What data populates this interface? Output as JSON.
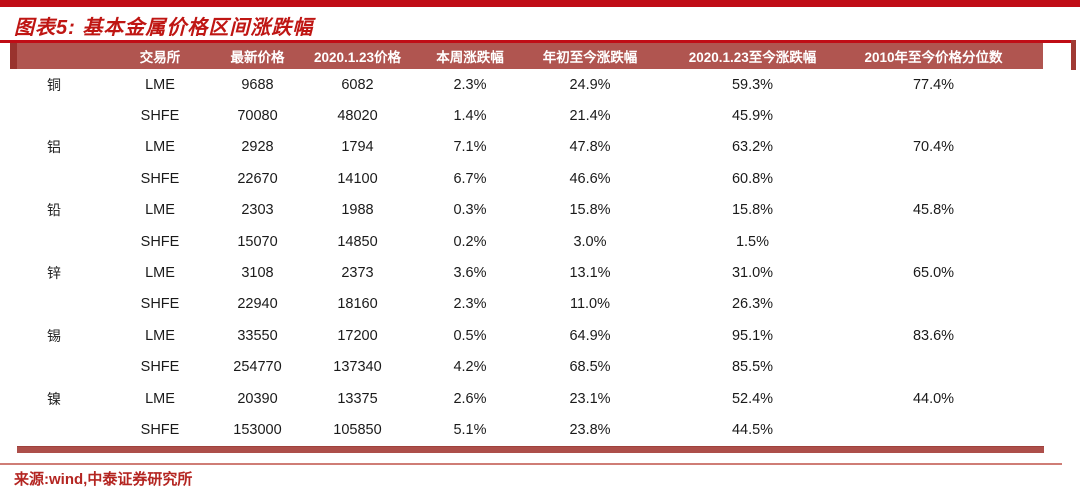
{
  "title": "图表5: 基本金属价格区间涨跌幅",
  "source": "来源:wind,中泰证券研究所",
  "colors": {
    "accent_red": "#c00d16",
    "header_bg": "#b05550",
    "header_text": "#ffffff",
    "title_red": "#bf1613",
    "bottom_bar": "#ad4f4a",
    "footer_line": "#cf7d76",
    "source_text": "#b42521"
  },
  "table": {
    "headers": [
      "",
      "交易所",
      "最新价格",
      "2020.1.23价格",
      "本周涨跌幅",
      "年初至今涨跌幅",
      "2020.1.23至今涨跌幅",
      "2010年至今价格分位数"
    ],
    "rows": [
      {
        "metal": "铜",
        "exchange": "LME",
        "latest": "9688",
        "price_jan23": "6082",
        "week_chg": "2.3%",
        "ytd_chg": "24.9%",
        "since_jan23_chg": "59.3%",
        "percentile": "77.4%"
      },
      {
        "metal": "",
        "exchange": "SHFE",
        "latest": "70080",
        "price_jan23": "48020",
        "week_chg": "1.4%",
        "ytd_chg": "21.4%",
        "since_jan23_chg": "45.9%",
        "percentile": ""
      },
      {
        "metal": "铝",
        "exchange": "LME",
        "latest": "2928",
        "price_jan23": "1794",
        "week_chg": "7.1%",
        "ytd_chg": "47.8%",
        "since_jan23_chg": "63.2%",
        "percentile": "70.4%"
      },
      {
        "metal": "",
        "exchange": "SHFE",
        "latest": "22670",
        "price_jan23": "14100",
        "week_chg": "6.7%",
        "ytd_chg": "46.6%",
        "since_jan23_chg": "60.8%",
        "percentile": ""
      },
      {
        "metal": "铅",
        "exchange": "LME",
        "latest": "2303",
        "price_jan23": "1988",
        "week_chg": "0.3%",
        "ytd_chg": "15.8%",
        "since_jan23_chg": "15.8%",
        "percentile": "45.8%"
      },
      {
        "metal": "",
        "exchange": "SHFE",
        "latest": "15070",
        "price_jan23": "14850",
        "week_chg": "0.2%",
        "ytd_chg": "3.0%",
        "since_jan23_chg": "1.5%",
        "percentile": ""
      },
      {
        "metal": "锌",
        "exchange": "LME",
        "latest": "3108",
        "price_jan23": "2373",
        "week_chg": "3.6%",
        "ytd_chg": "13.1%",
        "since_jan23_chg": "31.0%",
        "percentile": "65.0%"
      },
      {
        "metal": "",
        "exchange": "SHFE",
        "latest": "22940",
        "price_jan23": "18160",
        "week_chg": "2.3%",
        "ytd_chg": "11.0%",
        "since_jan23_chg": "26.3%",
        "percentile": ""
      },
      {
        "metal": "锡",
        "exchange": "LME",
        "latest": "33550",
        "price_jan23": "17200",
        "week_chg": "0.5%",
        "ytd_chg": "64.9%",
        "since_jan23_chg": "95.1%",
        "percentile": "83.6%"
      },
      {
        "metal": "",
        "exchange": "SHFE",
        "latest": "254770",
        "price_jan23": "137340",
        "week_chg": "4.2%",
        "ytd_chg": "68.5%",
        "since_jan23_chg": "85.5%",
        "percentile": ""
      },
      {
        "metal": "镍",
        "exchange": "LME",
        "latest": "20390",
        "price_jan23": "13375",
        "week_chg": "2.6%",
        "ytd_chg": "23.1%",
        "since_jan23_chg": "52.4%",
        "percentile": "44.0%"
      },
      {
        "metal": "",
        "exchange": "SHFE",
        "latest": "153000",
        "price_jan23": "105850",
        "week_chg": "5.1%",
        "ytd_chg": "23.8%",
        "since_jan23_chg": "44.5%",
        "percentile": ""
      }
    ]
  }
}
